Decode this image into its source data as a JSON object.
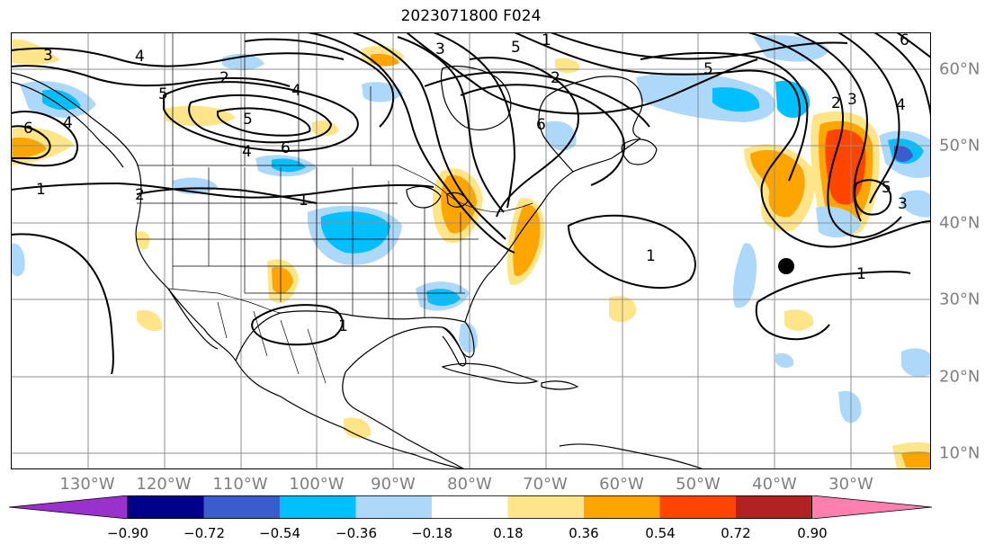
{
  "title": "2023071800 F024",
  "map": {
    "longitude_labels": [
      "130°W",
      "120°W",
      "110°W",
      "100°W",
      "90°W",
      "80°W",
      "70°W",
      "60°W",
      "50°W",
      "40°W",
      "30°W"
    ],
    "latitude_labels": [
      "60°N",
      "50°N",
      "40°N",
      "30°N",
      "20°N",
      "10°N"
    ],
    "contour_labels": [
      "3",
      "4",
      "2",
      "5",
      "6",
      "5",
      "4",
      "1",
      "2",
      "1",
      "4",
      "6",
      "1",
      "4",
      "5",
      "6",
      "3",
      "3",
      "2",
      "5",
      "4",
      "5",
      "1",
      "2",
      "1",
      "3",
      "1",
      "6"
    ],
    "colors": {
      "neg_090": "#9932cc",
      "neg_072": "#00008b",
      "neg_054": "#3a5ccc",
      "neg_036": "#00bfff",
      "neg_018": "#add8fa",
      "neutral": "#ffffff",
      "pos_018": "#ffe58a",
      "pos_036": "#ffa500",
      "pos_054": "#ff4500",
      "pos_072": "#b22222",
      "pos_090": "#ff7fae"
    }
  },
  "colorbar": {
    "ticks": [
      "−0.90",
      "−0.72",
      "−0.54",
      "−0.36",
      "−0.18",
      "0.18",
      "0.36",
      "0.54",
      "0.72",
      "0.90"
    ]
  }
}
